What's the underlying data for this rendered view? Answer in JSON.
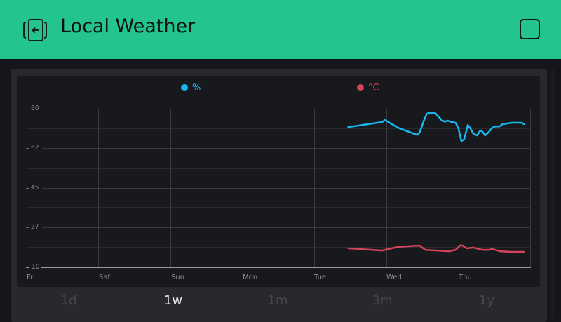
{
  "header": {
    "title": "Local Weather",
    "back_icon": "exit-door-arrow-icon",
    "menu_icon": "square-outline-icon",
    "background": "#23c48e"
  },
  "chart": {
    "legend": [
      {
        "label": "%",
        "color": "#17b7f0"
      },
      {
        "label": "°C",
        "color": "#d3435c"
      }
    ],
    "y_ticks": [
      "80",
      "62",
      "45",
      "27",
      "10"
    ],
    "x_ticks": [
      "Fri",
      "Sat",
      "Sun",
      "Mon",
      "Tue",
      "Wed",
      "Thu"
    ]
  },
  "ranges": {
    "items": [
      {
        "label": "1d",
        "active": false
      },
      {
        "label": "1w",
        "active": true
      },
      {
        "label": "1m",
        "active": false
      },
      {
        "label": "3m",
        "active": false
      },
      {
        "label": "1y",
        "active": false
      }
    ]
  },
  "chart_data": {
    "type": "line",
    "title": "",
    "xlabel": "",
    "ylabel": "",
    "ylim": [
      10,
      80
    ],
    "yticks": [
      10,
      27,
      45,
      62,
      80
    ],
    "categories": [
      "Fri",
      "Sat",
      "Sun",
      "Mon",
      "Tue",
      "Wed",
      "Thu"
    ],
    "x_unit": "days since Fri 00:00",
    "grid": true,
    "legend_position": "top",
    "series": [
      {
        "name": "%",
        "color": "#17b7f0",
        "x": [
          4.46,
          4.93,
          4.97,
          5.15,
          5.41,
          5.45,
          5.51,
          5.55,
          5.59,
          5.67,
          5.76,
          5.8,
          5.84,
          5.9,
          5.95,
          5.99,
          6.03,
          6.07,
          6.11,
          6.12,
          6.15,
          6.2,
          6.25,
          6.29,
          6.32,
          6.36,
          6.41,
          6.46,
          6.5,
          6.56,
          6.6,
          6.67,
          6.73,
          6.83,
          6.87,
          6.9
        ],
        "values": [
          71.9,
          74.1,
          75.0,
          71.6,
          68.5,
          69.4,
          74.7,
          77.7,
          78.3,
          78.0,
          74.9,
          74.3,
          74.7,
          74.1,
          73.8,
          71.3,
          65.7,
          66.6,
          71.6,
          72.8,
          71.6,
          68.8,
          68.2,
          70.3,
          70.0,
          68.2,
          69.7,
          71.6,
          72.2,
          72.2,
          73.2,
          73.5,
          73.8,
          73.8,
          73.8,
          73.2
        ]
      },
      {
        "name": "°C",
        "color": "#d3435c",
        "x": [
          4.46,
          4.93,
          4.97,
          5.15,
          5.45,
          5.53,
          5.86,
          5.95,
          6.01,
          6.05,
          6.1,
          6.2,
          6.32,
          6.42,
          6.46,
          6.56,
          6.73,
          6.9
        ],
        "values": [
          18.4,
          17.4,
          17.7,
          19.0,
          19.6,
          17.7,
          17.1,
          17.7,
          19.6,
          19.6,
          18.4,
          18.7,
          17.7,
          17.7,
          18.1,
          17.1,
          16.8,
          16.8
        ]
      }
    ]
  }
}
